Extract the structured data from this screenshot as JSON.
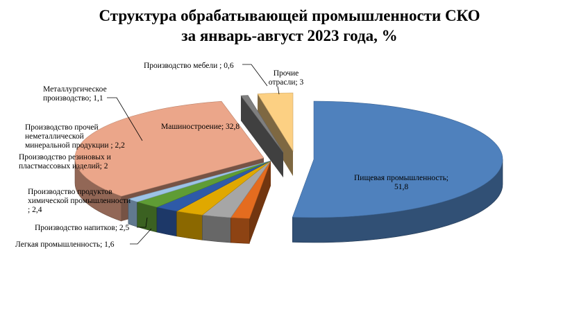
{
  "chart_data": {
    "type": "pie",
    "title_lines": [
      "Структура обрабатывающей промышленности СКО",
      "за январь-август 2023 года, %"
    ],
    "slices": [
      {
        "name": "Пищевая промышленность",
        "value": 51.8,
        "color": "#4f81bd",
        "label_lines": [
          "Пищевая промышленность;",
          "51,8"
        ]
      },
      {
        "name": "Легкая промышленность",
        "value": 1.6,
        "color": "#e46c1f",
        "label_lines": [
          "Легкая промышленность; 1,6"
        ]
      },
      {
        "name": "Производство напитков",
        "value": 2.5,
        "color": "#a6a6a6",
        "label_lines": [
          "Производство напитков; 2,5"
        ]
      },
      {
        "name": "Производство продуктов химической промышленности",
        "value": 2.4,
        "color": "#e0a800",
        "label_lines": [
          "Производство продуктов",
          "химической промышленности",
          "; 2,4"
        ]
      },
      {
        "name": "Производство резиновых и пластмассовых изделий",
        "value": 2,
        "color": "#2e5aa8",
        "label_lines": [
          "Производство резиновых и",
          "пластмассовых изделий; 2"
        ]
      },
      {
        "name": "Производство прочей неметаллической минеральной продукции",
        "value": 2.2,
        "color": "#5f9c35",
        "label_lines": [
          "Производство прочей",
          "неметаллической",
          "минеральной продукции ; 2,2"
        ]
      },
      {
        "name": "Металлургическое производство",
        "value": 1.1,
        "color": "#9dc3e6",
        "label_lines": [
          "Металлургическое",
          "производство; 1,1"
        ]
      },
      {
        "name": "Машиностроение",
        "value": 32.8,
        "color": "#eba68a",
        "label_lines": [
          "Машиностроение; 32,8"
        ]
      },
      {
        "name": "Производство мебели",
        "value": 0.6,
        "color": "#7f7f7f",
        "label_lines": [
          "Производство мебели ; 0,6"
        ]
      },
      {
        "name": "Прочие отрасли",
        "value": 3,
        "color": "#fcd083",
        "label_lines": [
          "Прочие",
          "отрасли; 3"
        ]
      }
    ]
  }
}
